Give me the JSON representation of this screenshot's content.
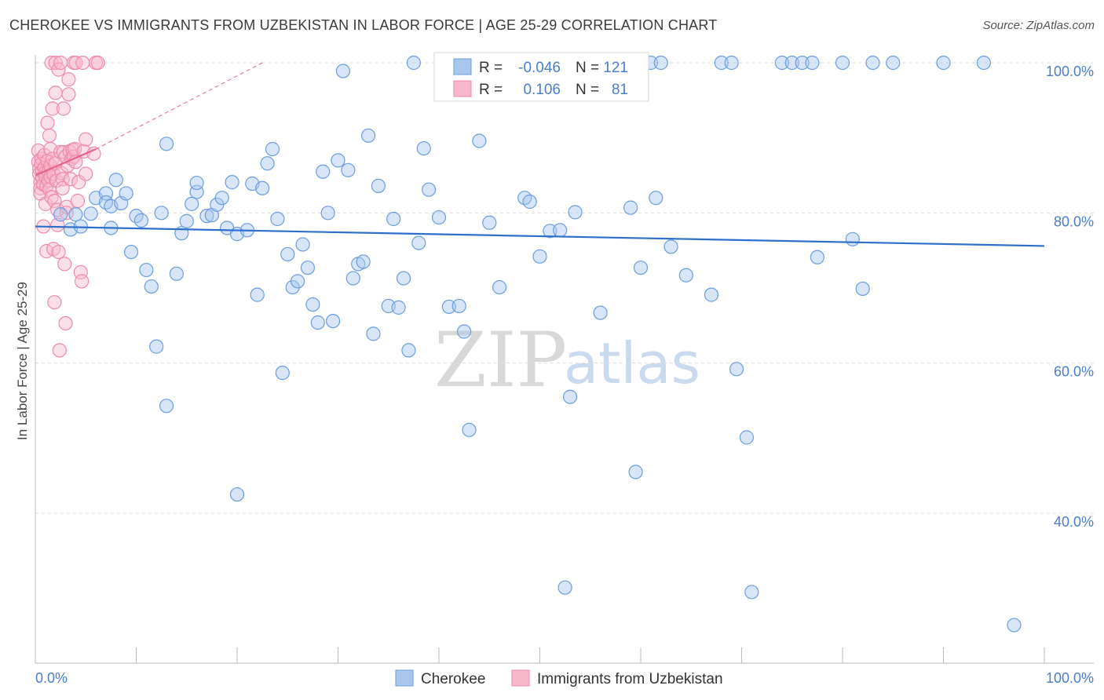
{
  "title": "CHEROKEE VS IMMIGRANTS FROM UZBEKISTAN IN LABOR FORCE | AGE 25-29 CORRELATION CHART",
  "source": "Source: ZipAtlas.com",
  "watermark": {
    "zip": "ZIP",
    "atlas": "atlas"
  },
  "colors": {
    "blue_fill": "#a9c6ef",
    "blue_stroke": "#6a9ddf",
    "blue_line": "#2f6fcc",
    "pink_fill": "#f7b8cb",
    "pink_stroke": "#ef8aa9",
    "pink_line": "#e8608c",
    "grid": "#dddddd",
    "axis_text": "#4a7ec9"
  },
  "chart_data": {
    "type": "scatter",
    "xlabel": "",
    "ylabel": "In Labor Force | Age 25-29",
    "xlim": [
      0,
      100
    ],
    "ylim": [
      20,
      100
    ],
    "x_tick_labels": [
      "0.0%",
      "100.0%"
    ],
    "y_ticks": [
      40,
      60,
      80,
      100
    ],
    "y_tick_labels": [
      "40.0%",
      "60.0%",
      "80.0%",
      "100.0%"
    ],
    "grid": true,
    "legend_position": "bottom-center",
    "stats": [
      {
        "label_r": "R =",
        "r": "-0.046",
        "label_n": "N =",
        "n": "121"
      },
      {
        "label_r": "R =",
        "r": "0.106",
        "label_n": "N =",
        "n": "81"
      }
    ],
    "series": [
      {
        "name": "Cherokee",
        "trend": {
          "x": [
            0,
            100
          ],
          "y": [
            78.2,
            75.6
          ]
        },
        "points": [
          [
            2.5,
            79.8
          ],
          [
            3.5,
            77.8
          ],
          [
            4,
            79.8
          ],
          [
            4.5,
            78.2
          ],
          [
            5.5,
            79.9
          ],
          [
            6,
            82
          ],
          [
            7,
            82.6
          ],
          [
            7,
            81.4
          ],
          [
            7.5,
            78
          ],
          [
            7.5,
            80.9
          ],
          [
            8,
            84.4
          ],
          [
            8.5,
            81.3
          ],
          [
            9,
            82.6
          ],
          [
            9.5,
            74.8
          ],
          [
            10,
            79.6
          ],
          [
            10.5,
            79
          ],
          [
            11,
            72.4
          ],
          [
            11.5,
            70.2
          ],
          [
            12,
            62.2
          ],
          [
            12.5,
            80
          ],
          [
            13,
            89.2
          ],
          [
            13,
            54.3
          ],
          [
            14,
            71.9
          ],
          [
            14.5,
            77.3
          ],
          [
            15,
            78.9
          ],
          [
            15.5,
            81.2
          ],
          [
            16,
            82.8
          ],
          [
            16,
            84
          ],
          [
            17,
            79.6
          ],
          [
            17.5,
            79.7
          ],
          [
            18,
            81.1
          ],
          [
            18.5,
            82
          ],
          [
            19,
            78
          ],
          [
            19.5,
            84.1
          ],
          [
            20,
            42.5
          ],
          [
            20,
            77.2
          ],
          [
            21,
            77.7
          ],
          [
            21.5,
            83.9
          ],
          [
            22,
            69.1
          ],
          [
            22.5,
            83.3
          ],
          [
            23,
            86.6
          ],
          [
            23.5,
            88.5
          ],
          [
            24,
            79.2
          ],
          [
            24.5,
            58.7
          ],
          [
            25,
            74.5
          ],
          [
            25.5,
            70.1
          ],
          [
            26,
            70.9
          ],
          [
            26.5,
            75.8
          ],
          [
            27,
            72.7
          ],
          [
            27.5,
            67.8
          ],
          [
            28,
            65.4
          ],
          [
            28.5,
            85.5
          ],
          [
            29,
            80
          ],
          [
            29.5,
            65.6
          ],
          [
            30,
            87
          ],
          [
            30.5,
            98.9
          ],
          [
            31,
            85.7
          ],
          [
            31.5,
            71.3
          ],
          [
            32,
            73.2
          ],
          [
            32.5,
            73.5
          ],
          [
            33,
            90.3
          ],
          [
            33.5,
            63.9
          ],
          [
            34,
            83.6
          ],
          [
            35,
            67.6
          ],
          [
            35.5,
            79.2
          ],
          [
            36,
            67.4
          ],
          [
            36.5,
            71.3
          ],
          [
            37,
            61.7
          ],
          [
            37.5,
            100
          ],
          [
            38,
            76
          ],
          [
            38.5,
            88.6
          ],
          [
            39,
            83.1
          ],
          [
            40,
            79.4
          ],
          [
            41,
            67.5
          ],
          [
            42,
            67.6
          ],
          [
            42.5,
            64.2
          ],
          [
            43,
            51.1
          ],
          [
            44,
            89.6
          ],
          [
            45,
            78.7
          ],
          [
            46,
            70.1
          ],
          [
            47,
            100
          ],
          [
            48.5,
            82
          ],
          [
            49,
            81.5
          ],
          [
            50,
            74.2
          ],
          [
            51,
            77.6
          ],
          [
            52,
            77.7
          ],
          [
            52.5,
            30.1
          ],
          [
            53,
            55.5
          ],
          [
            53.5,
            80.1
          ],
          [
            54,
            100
          ],
          [
            55,
            100
          ],
          [
            56,
            66.7
          ],
          [
            57,
            97.6
          ],
          [
            58,
            100
          ],
          [
            59,
            80.7
          ],
          [
            59.5,
            45.5
          ],
          [
            60,
            72.7
          ],
          [
            61,
            100
          ],
          [
            61.5,
            82
          ],
          [
            62,
            100
          ],
          [
            63,
            75.5
          ],
          [
            64.5,
            71.7
          ],
          [
            67,
            69.1
          ],
          [
            68,
            100
          ],
          [
            69,
            100
          ],
          [
            69.5,
            59.2
          ],
          [
            70.5,
            50.1
          ],
          [
            71,
            29.5
          ],
          [
            74,
            100
          ],
          [
            75,
            100
          ],
          [
            76,
            100
          ],
          [
            77,
            100
          ],
          [
            77.5,
            74.1
          ],
          [
            80,
            100
          ],
          [
            81,
            76.5
          ],
          [
            82,
            69.9
          ],
          [
            83,
            100
          ],
          [
            85,
            100
          ],
          [
            90,
            100
          ],
          [
            94,
            100
          ],
          [
            97,
            25.1
          ]
        ]
      },
      {
        "name": "Immigrants from Uzbekistan",
        "trend": {
          "x": [
            0,
            6
          ],
          "y": [
            85,
            88.5
          ]
        },
        "trend_dashed": {
          "x": [
            6,
            22.5
          ],
          "y": [
            88.5,
            100
          ]
        },
        "points": [
          [
            0.3,
            88.3
          ],
          [
            0.3,
            86.8
          ],
          [
            0.4,
            85.9
          ],
          [
            0.4,
            85.2
          ],
          [
            0.5,
            84.1
          ],
          [
            0.5,
            83.3
          ],
          [
            0.5,
            82.6
          ],
          [
            0.6,
            87.2
          ],
          [
            0.6,
            86.5
          ],
          [
            0.7,
            85.6
          ],
          [
            0.7,
            84.7
          ],
          [
            0.8,
            83.8
          ],
          [
            0.8,
            78.2
          ],
          [
            0.9,
            87.7
          ],
          [
            0.9,
            86
          ],
          [
            1,
            85.4
          ],
          [
            1,
            84.9
          ],
          [
            1,
            81.2
          ],
          [
            1.1,
            83.6
          ],
          [
            1.1,
            74.9
          ],
          [
            1.2,
            92
          ],
          [
            1.2,
            86.9
          ],
          [
            1.3,
            85.5
          ],
          [
            1.3,
            84.3
          ],
          [
            1.4,
            83.1
          ],
          [
            1.4,
            90.3
          ],
          [
            1.5,
            88.5
          ],
          [
            1.5,
            86.3
          ],
          [
            1.5,
            84.8
          ],
          [
            1.6,
            100
          ],
          [
            1.6,
            82.1
          ],
          [
            1.7,
            93.9
          ],
          [
            1.7,
            87.2
          ],
          [
            1.8,
            85.2
          ],
          [
            1.8,
            75.2
          ],
          [
            1.9,
            68.1
          ],
          [
            1.9,
            81.6
          ],
          [
            2,
            96
          ],
          [
            2,
            100
          ],
          [
            2,
            86.6
          ],
          [
            2.1,
            84.3
          ],
          [
            2.2,
            80.4
          ],
          [
            2.2,
            78.4
          ],
          [
            2.3,
            99.1
          ],
          [
            2.3,
            74.8
          ],
          [
            2.4,
            61.7
          ],
          [
            2.5,
            100
          ],
          [
            2.5,
            88.1
          ],
          [
            2.6,
            85.3
          ],
          [
            2.7,
            84.5
          ],
          [
            2.7,
            83.3
          ],
          [
            2.8,
            93.9
          ],
          [
            2.8,
            88.1
          ],
          [
            2.9,
            73.2
          ],
          [
            3,
            65.3
          ],
          [
            3,
            87.5
          ],
          [
            3.1,
            80.8
          ],
          [
            3.1,
            80
          ],
          [
            3.2,
            86.3
          ],
          [
            3.3,
            95.8
          ],
          [
            3.3,
            97.8
          ],
          [
            3.4,
            88.2
          ],
          [
            3.5,
            84.5
          ],
          [
            3.6,
            87.2
          ],
          [
            3.7,
            88.4
          ],
          [
            3.8,
            100
          ],
          [
            3.8,
            87.5
          ],
          [
            3.9,
            88.5
          ],
          [
            4,
            100
          ],
          [
            4,
            86.8
          ],
          [
            4.2,
            81.6
          ],
          [
            4.3,
            84.1
          ],
          [
            4.5,
            72.1
          ],
          [
            4.6,
            70.9
          ],
          [
            4.7,
            100
          ],
          [
            4.8,
            88.2
          ],
          [
            5,
            85.2
          ],
          [
            5,
            89.8
          ],
          [
            6,
            100
          ],
          [
            6.2,
            100
          ],
          [
            5.8,
            87.9
          ]
        ]
      }
    ]
  },
  "legend": [
    {
      "label": "Cherokee"
    },
    {
      "label": "Immigrants from Uzbekistan"
    }
  ]
}
